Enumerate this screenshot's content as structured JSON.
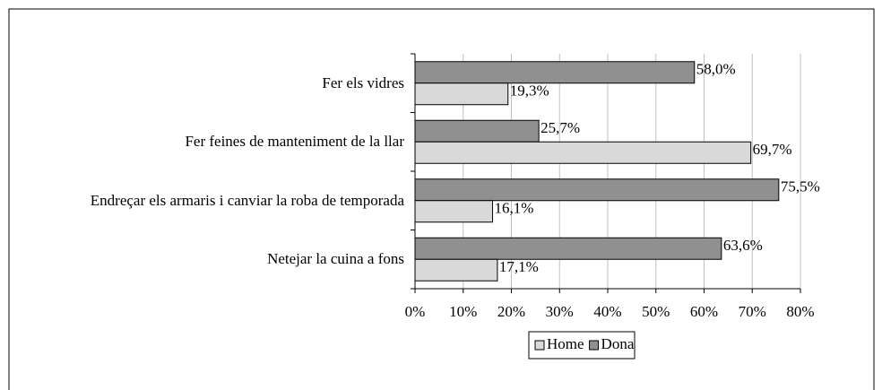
{
  "chart_data": {
    "type": "hbar",
    "categories": [
      "Fer els vidres",
      "Fer feines de manteniment de la llar",
      "Endreçar els armaris i canviar la roba de temporada",
      "Netejar la cuina a fons"
    ],
    "series": [
      {
        "name": "Dona",
        "color": "#909090",
        "values": [
          58.0,
          25.7,
          75.5,
          63.6
        ],
        "value_labels": [
          "58,0%",
          "25,7%",
          "75,5%",
          "63,6%"
        ]
      },
      {
        "name": "Home",
        "color": "#d9d9d9",
        "values": [
          19.3,
          69.7,
          16.1,
          17.1
        ],
        "value_labels": [
          "19,3%",
          "69,7%",
          "16,1%",
          "17,1%"
        ]
      }
    ],
    "xlim": [
      0,
      80
    ],
    "xticks": [
      {
        "value": 0,
        "label": "0%"
      },
      {
        "value": 10,
        "label": "10%"
      },
      {
        "value": 20,
        "label": "20%"
      },
      {
        "value": 30,
        "label": "30%"
      },
      {
        "value": 40,
        "label": "40%"
      },
      {
        "value": 50,
        "label": "50%"
      },
      {
        "value": 60,
        "label": "60%"
      },
      {
        "value": 70,
        "label": "70%"
      },
      {
        "value": 80,
        "label": "80%"
      }
    ],
    "grid": true,
    "legend": "bottom"
  }
}
